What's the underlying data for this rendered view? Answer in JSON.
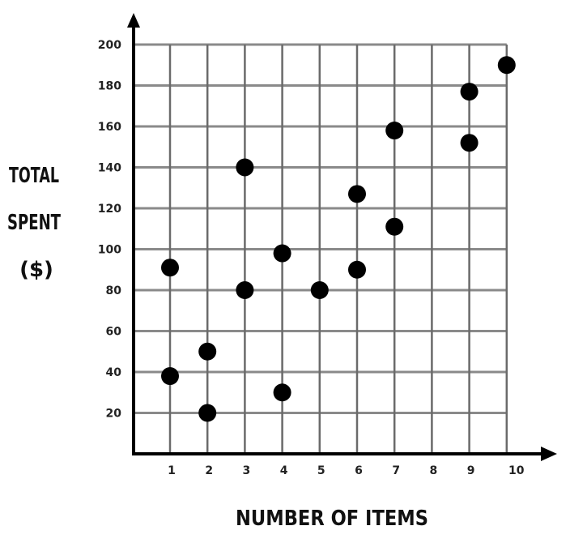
{
  "chart_data": {
    "type": "scatter",
    "title": "",
    "xlabel": "NUMBER OF ITEMS",
    "ylabel_lines": [
      "TOTAL",
      "SPENT",
      "($)"
    ],
    "xlim": [
      0,
      10
    ],
    "ylim": [
      0,
      200
    ],
    "x_ticks": [
      1,
      2,
      3,
      4,
      5,
      6,
      7,
      8,
      9,
      10
    ],
    "y_ticks": [
      20,
      40,
      60,
      80,
      100,
      120,
      140,
      160,
      180,
      200
    ],
    "grid": true,
    "point_color": "#000000",
    "points": [
      {
        "x": 1,
        "y": 91
      },
      {
        "x": 1,
        "y": 38
      },
      {
        "x": 2,
        "y": 50
      },
      {
        "x": 2,
        "y": 20
      },
      {
        "x": 3,
        "y": 140
      },
      {
        "x": 3,
        "y": 80
      },
      {
        "x": 4,
        "y": 98
      },
      {
        "x": 4,
        "y": 30
      },
      {
        "x": 5,
        "y": 80
      },
      {
        "x": 6,
        "y": 127
      },
      {
        "x": 6,
        "y": 90
      },
      {
        "x": 7,
        "y": 158
      },
      {
        "x": 7,
        "y": 111
      },
      {
        "x": 9,
        "y": 177
      },
      {
        "x": 9,
        "y": 152
      },
      {
        "x": 10,
        "y": 190
      }
    ]
  }
}
